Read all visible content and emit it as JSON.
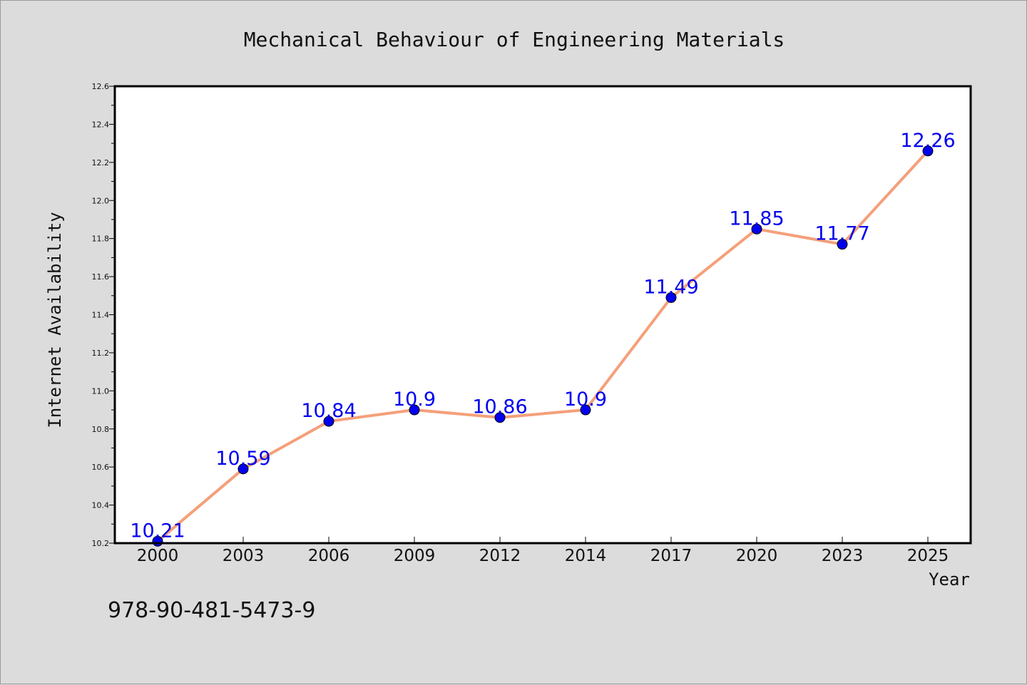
{
  "chart_data": {
    "type": "line",
    "title": "Mechanical Behaviour of Engineering Materials",
    "xlabel": "Year",
    "ylabel": "Internet Availability",
    "categories": [
      "2000",
      "2003",
      "2006",
      "2009",
      "2012",
      "2014",
      "2017",
      "2020",
      "2023",
      "2025"
    ],
    "series": [
      {
        "values": [
          10.21,
          10.59,
          10.84,
          10.9,
          10.86,
          10.9,
          11.49,
          11.85,
          11.77,
          12.26
        ],
        "labels": [
          "10.21",
          "10.59",
          "10.84",
          "10.9",
          "10.86",
          "10.9",
          "11.49",
          "11.85",
          "11.77",
          "12.26"
        ],
        "line_color": "#f4a07a",
        "marker_color": "#0000ee",
        "label_color": "#0000ee"
      }
    ],
    "ylim": [
      10.2,
      12.6
    ],
    "yticks": [
      "10.2",
      "10.4",
      "10.6",
      "10.8",
      "11.0",
      "11.2",
      "11.4",
      "11.6",
      "11.8",
      "12.0",
      "12.2",
      "12.4",
      "12.6"
    ],
    "grid": false,
    "legend": "none"
  },
  "footer": {
    "isbn": "978-90-481-5473-9"
  },
  "colors": {
    "background": "#dcdcdc",
    "plot_area": "#ffffff"
  }
}
